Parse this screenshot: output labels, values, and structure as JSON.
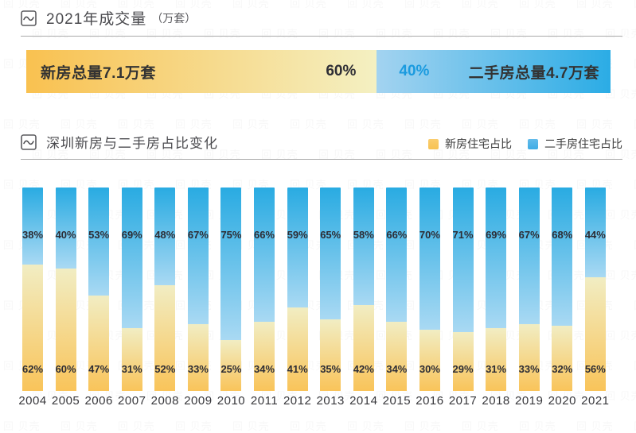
{
  "watermark_text": "回 贝壳",
  "section1": {
    "title": "2021年成交量",
    "unit": "（万套）",
    "banner": {
      "new_label": "新房总量7.1万套",
      "new_pct": "60%",
      "new_pct_value": 60,
      "second_pct": "40%",
      "second_pct_value": 40,
      "second_label": "二手房总量4.7万套"
    }
  },
  "section2": {
    "title": "深圳新房与二手房占比变化",
    "legend": [
      {
        "label": "新房住宅占比",
        "color_top": "#facd6e",
        "color_bottom": "#f7c253"
      },
      {
        "label": "二手房住宅占比",
        "color_top": "#63bceb",
        "color_bottom": "#3face5"
      }
    ]
  },
  "chart_data": {
    "type": "bar",
    "stacked": true,
    "title": "深圳新房与二手房占比变化",
    "unit": "%",
    "categories": [
      "2004",
      "2005",
      "2006",
      "2007",
      "2008",
      "2009",
      "2010",
      "2011",
      "2012",
      "2013",
      "2014",
      "2015",
      "2016",
      "2017",
      "2018",
      "2019",
      "2020",
      "2021"
    ],
    "series": [
      {
        "name": "新房住宅占比",
        "position": "bottom",
        "color_top": "#f1edc3",
        "color_bottom": "#f9c45a",
        "values": [
          62,
          60,
          47,
          31,
          52,
          33,
          25,
          34,
          41,
          35,
          42,
          34,
          30,
          29,
          31,
          33,
          32,
          56
        ]
      },
      {
        "name": "二手房住宅占比",
        "position": "top",
        "color_top": "#29abe2",
        "color_bottom": "#a9d9f3",
        "values": [
          38,
          40,
          53,
          69,
          48,
          67,
          75,
          66,
          59,
          65,
          58,
          66,
          70,
          71,
          69,
          67,
          68,
          44
        ]
      }
    ],
    "ylim": [
      0,
      100
    ],
    "grid": false,
    "legend_position": "top-right"
  },
  "colors": {
    "banner_yellow_left": "#f9c150",
    "banner_yellow_right": "#f4f0c2",
    "banner_blue_left": "#a3d3f0",
    "banner_blue_right": "#2bace5",
    "banner_pct_blue_text": "#1b9bdf",
    "rule_gray": "#a9a9a9",
    "title_gray": "#4b4b4f"
  }
}
